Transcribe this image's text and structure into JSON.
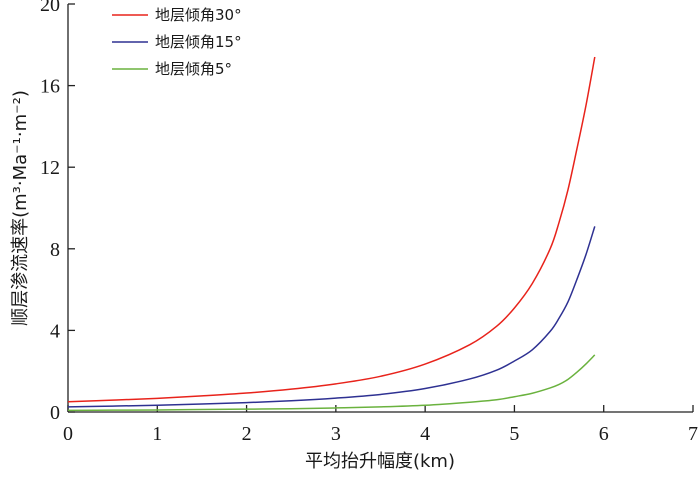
{
  "chart_data": {
    "type": "line",
    "xlabel": "平均抬升幅度(km)",
    "ylabel": "顺层渗流速率(m³·Ma⁻¹·m⁻²)",
    "xlim": [
      0,
      7
    ],
    "ylim": [
      0,
      20
    ],
    "x_ticks": [
      "0",
      "1",
      "2",
      "3",
      "4",
      "5",
      "6",
      "7"
    ],
    "y_ticks": [
      "0",
      "4",
      "8",
      "12",
      "16",
      "20"
    ],
    "grid": false,
    "legend_position": "top-left",
    "series": [
      {
        "name": "地层倾角30°",
        "color": "#e8231b",
        "x": [
          0,
          0.5,
          1,
          1.5,
          2,
          2.5,
          3,
          3.5,
          4,
          4.5,
          4.8,
          5,
          5.2,
          5.4,
          5.5,
          5.6,
          5.7,
          5.8,
          5.9
        ],
        "y": [
          0.5,
          0.58,
          0.67,
          0.79,
          0.93,
          1.12,
          1.38,
          1.75,
          2.35,
          3.3,
          4.2,
          5.1,
          6.3,
          8.0,
          9.3,
          10.9,
          12.9,
          15.0,
          17.4
        ]
      },
      {
        "name": "地层倾角15°",
        "color": "#2e3192",
        "x": [
          0,
          0.5,
          1,
          1.5,
          2,
          2.5,
          3,
          3.5,
          4,
          4.5,
          4.8,
          5,
          5.2,
          5.4,
          5.5,
          5.6,
          5.7,
          5.8,
          5.9
        ],
        "y": [
          0.25,
          0.29,
          0.33,
          0.39,
          0.46,
          0.55,
          0.68,
          0.86,
          1.15,
          1.62,
          2.05,
          2.5,
          3.05,
          3.95,
          4.6,
          5.4,
          6.5,
          7.7,
          9.1
        ]
      },
      {
        "name": "地层倾角5°",
        "color": "#6ab23e",
        "x": [
          0,
          0.5,
          1,
          1.5,
          2,
          2.5,
          3,
          3.5,
          4,
          4.5,
          4.8,
          5,
          5.2,
          5.4,
          5.5,
          5.6,
          5.7,
          5.8,
          5.9
        ],
        "y": [
          0.08,
          0.09,
          0.1,
          0.12,
          0.14,
          0.16,
          0.2,
          0.25,
          0.33,
          0.48,
          0.6,
          0.75,
          0.92,
          1.18,
          1.35,
          1.6,
          1.95,
          2.35,
          2.8
        ]
      }
    ]
  }
}
